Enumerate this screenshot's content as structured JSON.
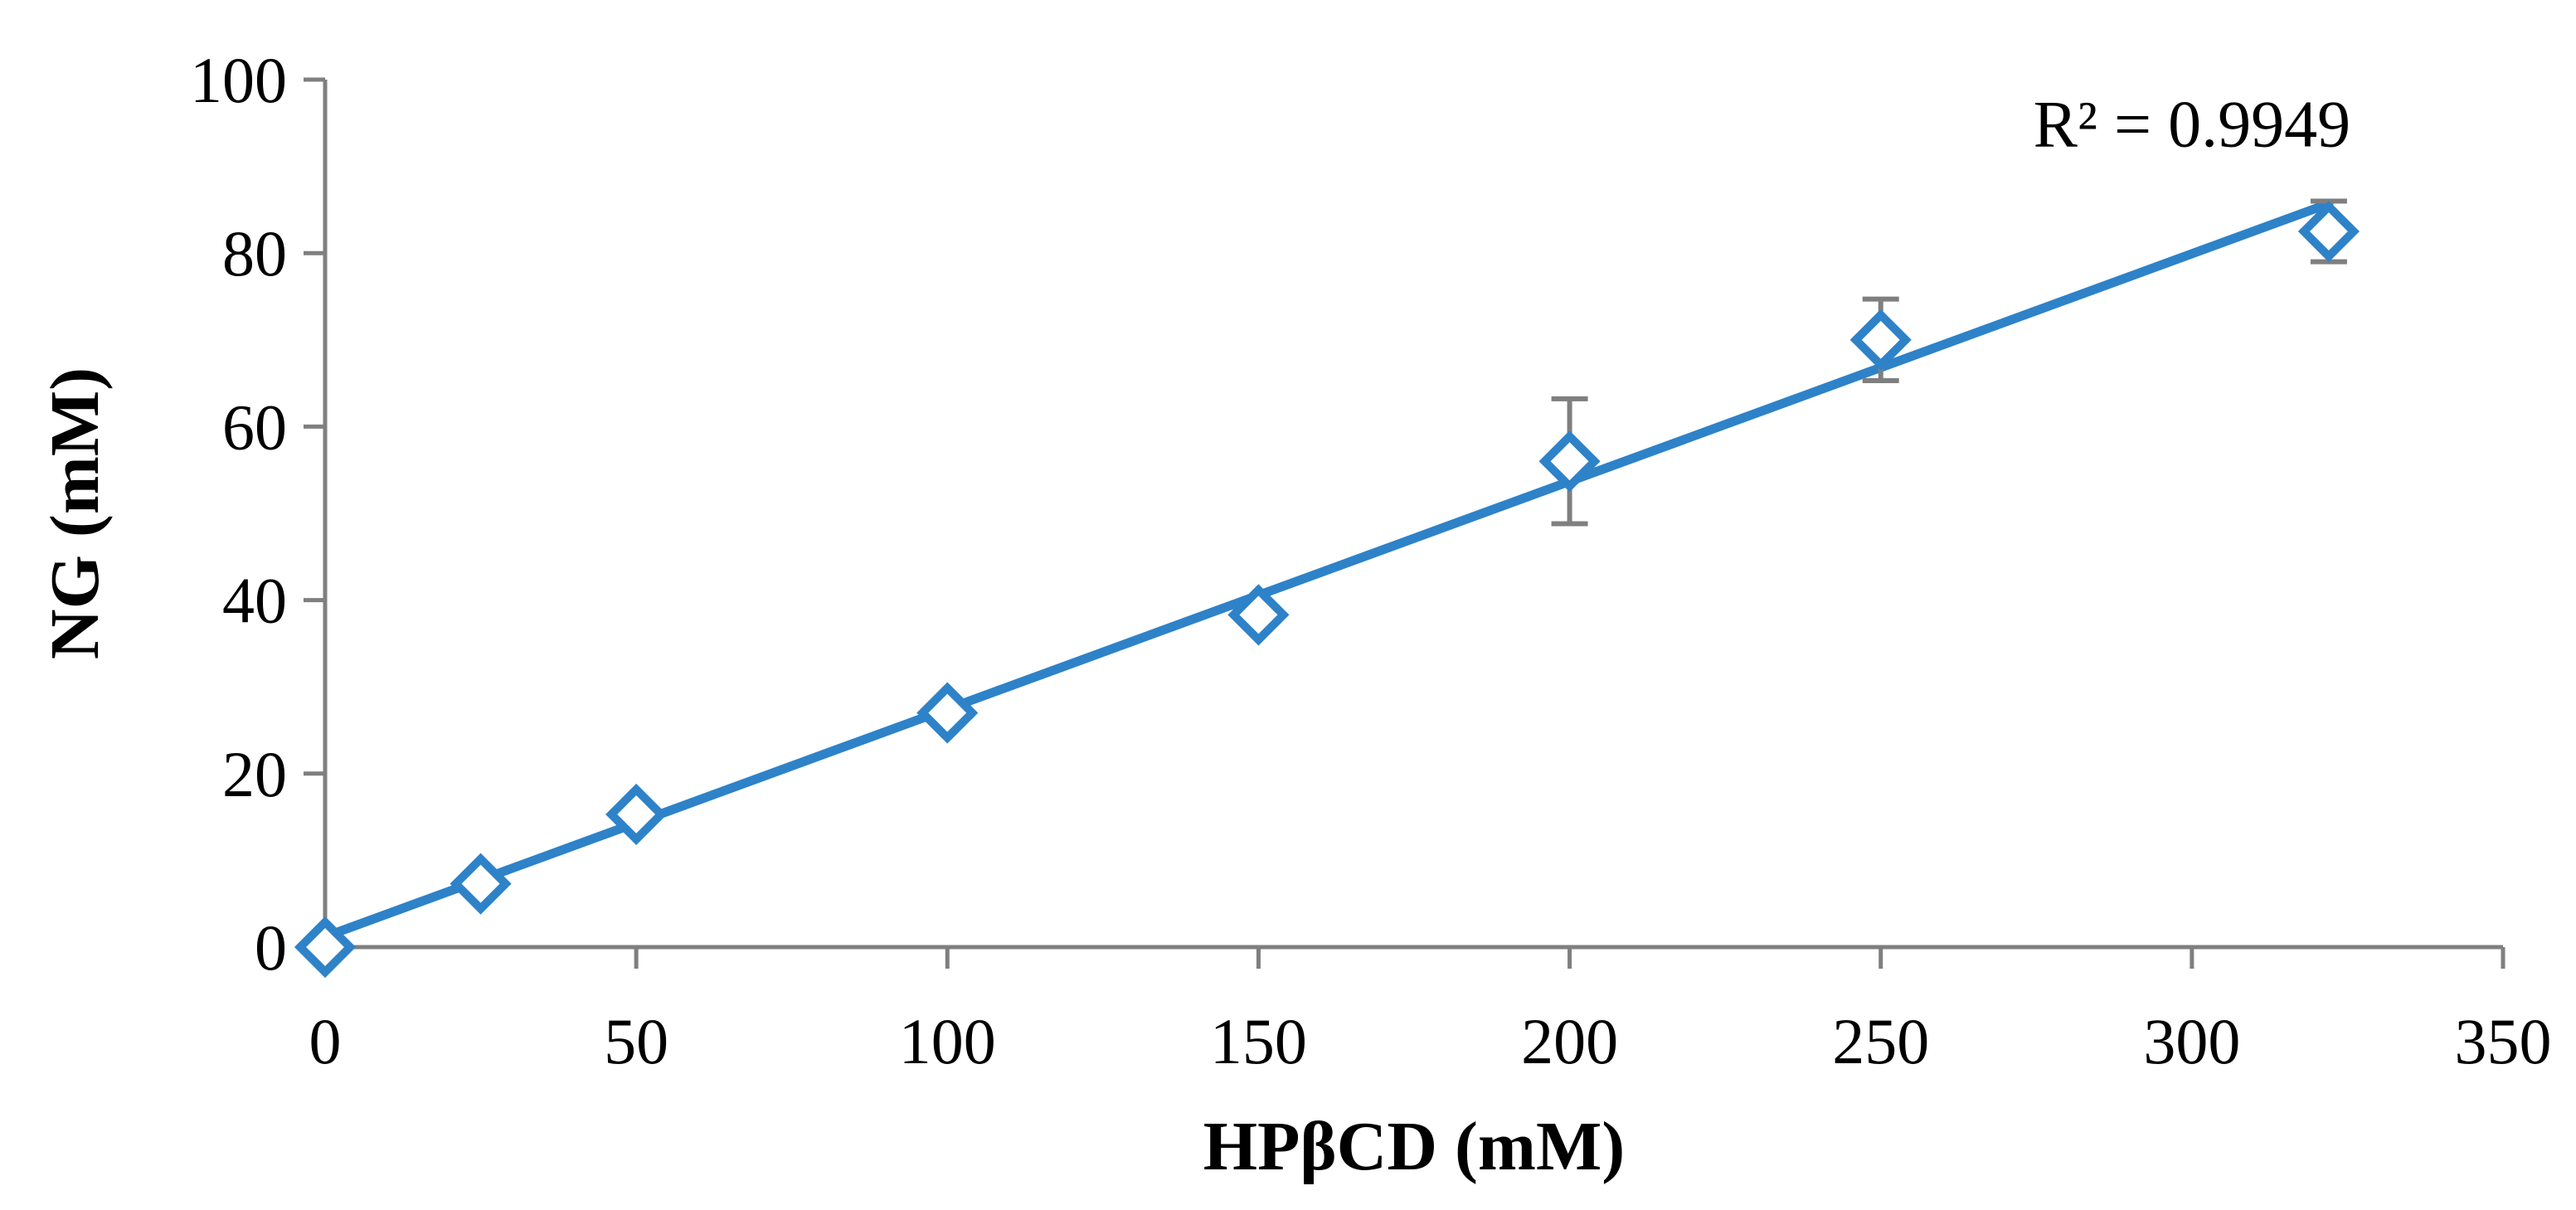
{
  "chart_data": {
    "type": "scatter",
    "xlabel": "HPβCD (mM)",
    "ylabel": "NG (mM)",
    "xlim": [
      0,
      350
    ],
    "ylim": [
      0,
      100
    ],
    "xticks": [
      0,
      50,
      100,
      150,
      200,
      250,
      300,
      350
    ],
    "yticks": [
      0,
      20,
      40,
      60,
      80,
      100
    ],
    "grid": false,
    "colors": {
      "series": "#2e82c8",
      "axis": "#7f7f7f",
      "error": "#7f7f7f"
    },
    "series": [
      {
        "marker": "open-diamond",
        "points": [
          {
            "x": 0,
            "y": 0,
            "err": 0
          },
          {
            "x": 25,
            "y": 7.3,
            "err": 0.6
          },
          {
            "x": 50,
            "y": 15.3,
            "err": 0.8
          },
          {
            "x": 100,
            "y": 27,
            "err": 0.6
          },
          {
            "x": 150,
            "y": 38.3,
            "err": 0.8
          },
          {
            "x": 200,
            "y": 56,
            "err": 7.2
          },
          {
            "x": 250,
            "y": 70,
            "err": 4.7
          },
          {
            "x": 322,
            "y": 82.5,
            "err": 3.5
          }
        ]
      }
    ],
    "trendline": {
      "type": "linear",
      "x": [
        0,
        322
      ],
      "y": [
        1.2,
        85.7
      ]
    },
    "annotation": {
      "text": "R² = 0.9949",
      "x": 300,
      "y": 95
    }
  }
}
